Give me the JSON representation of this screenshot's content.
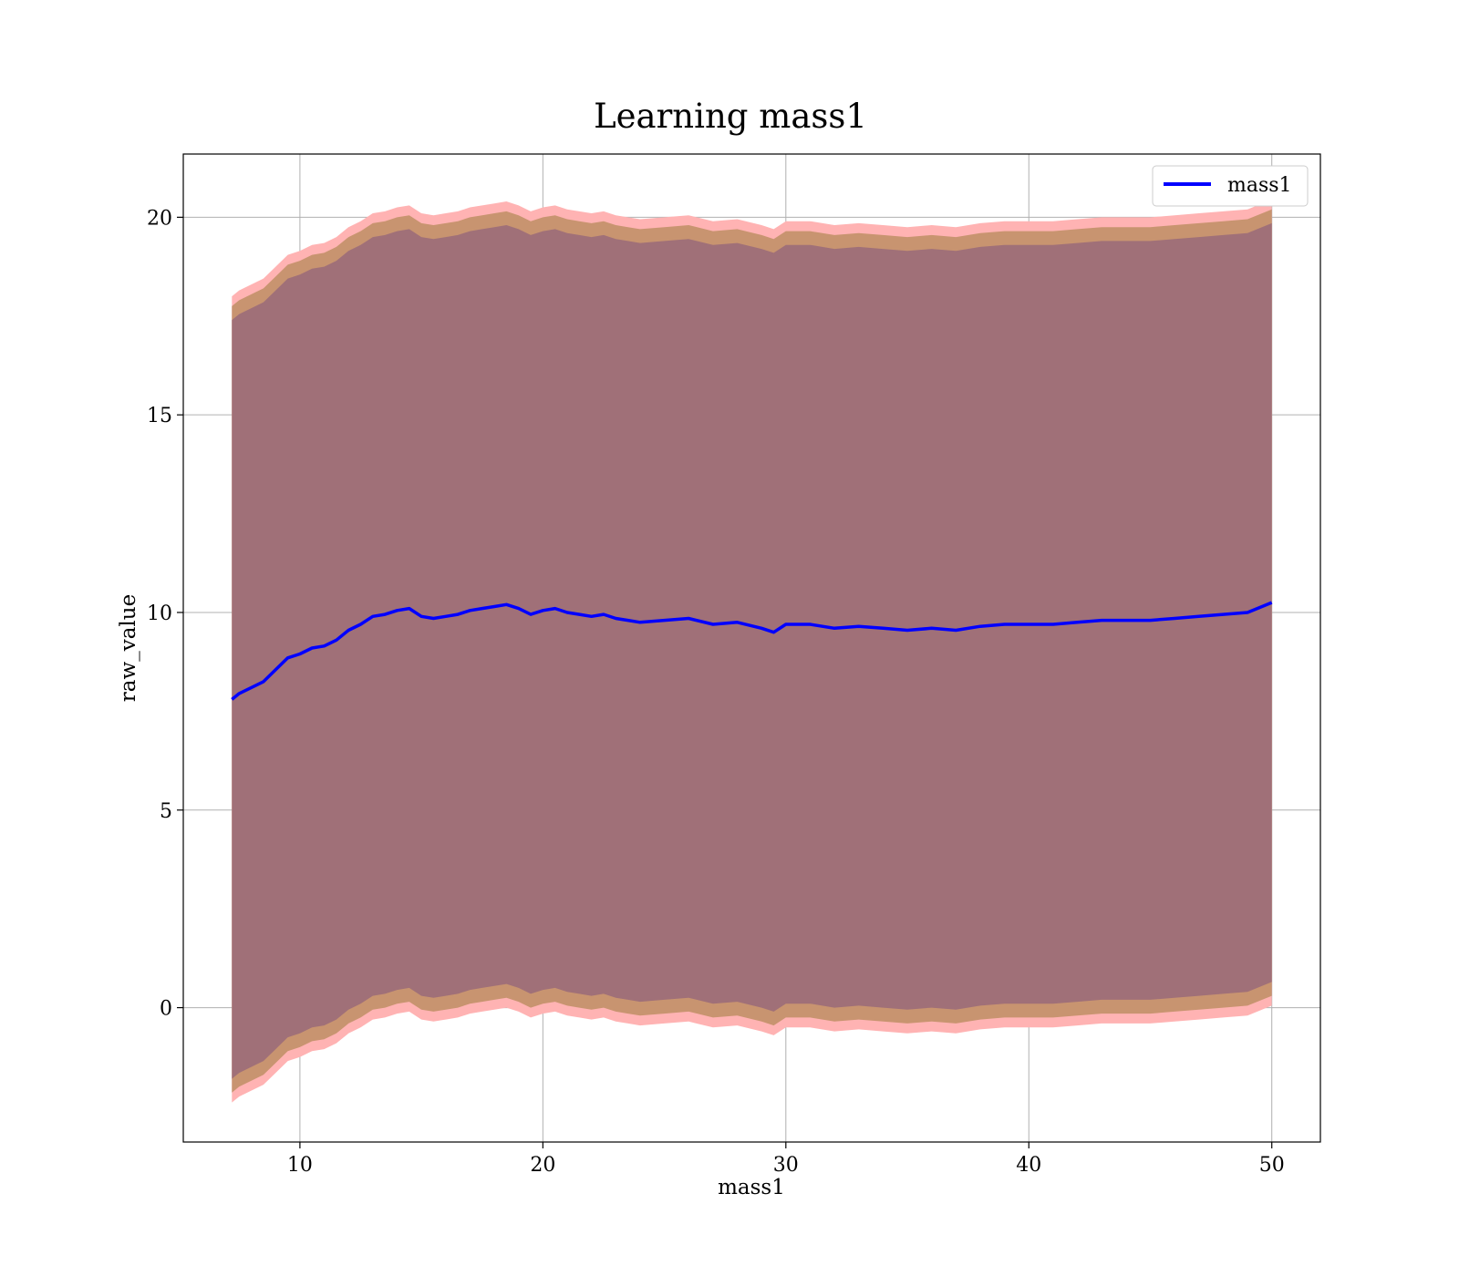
{
  "chart_data": {
    "type": "area",
    "title": "Learning mass1",
    "xlabel": "mass1",
    "ylabel": "raw_value",
    "xlim": [
      5.2,
      52
    ],
    "ylim": [
      -3.4,
      21.6
    ],
    "xticks": [
      10,
      20,
      30,
      40,
      50
    ],
    "yticks": [
      0,
      5,
      10,
      15,
      20
    ],
    "grid": true,
    "legend": {
      "position": "top-right",
      "entries": [
        "mass1"
      ]
    },
    "colors": {
      "line": "#0000ff",
      "band_outer": "#ffb3b3",
      "band_mid": "#c89470",
      "band_inner": "#a07078",
      "grid": "#b0b0b0",
      "axes": "#000000"
    },
    "band_offsets": {
      "outer": [
        10.2,
        -10.2
      ],
      "mid": [
        9.95,
        -9.95
      ],
      "inner": [
        9.6,
        -9.6
      ]
    },
    "series": [
      {
        "name": "mass1",
        "x": [
          7.2,
          7.5,
          8.0,
          8.5,
          9.0,
          9.5,
          10.0,
          10.5,
          11.0,
          11.5,
          12.0,
          12.5,
          13.0,
          13.5,
          14.0,
          14.5,
          15.0,
          15.5,
          16.0,
          16.5,
          17.0,
          17.5,
          18.0,
          18.5,
          19.0,
          19.5,
          20.0,
          20.5,
          21.0,
          21.5,
          22.0,
          22.5,
          23.0,
          23.5,
          24.0,
          25.0,
          26.0,
          27.0,
          28.0,
          29.0,
          29.5,
          30.0,
          31.0,
          32.0,
          33.0,
          34.0,
          35.0,
          36.0,
          37.0,
          38.0,
          39.0,
          40.0,
          41.0,
          42.0,
          43.0,
          44.0,
          45.0,
          46.0,
          47.0,
          48.0,
          49.0,
          50.0
        ],
        "y": [
          7.8,
          7.95,
          8.1,
          8.25,
          8.55,
          8.85,
          8.95,
          9.1,
          9.15,
          9.3,
          9.55,
          9.7,
          9.9,
          9.95,
          10.05,
          10.1,
          9.9,
          9.85,
          9.9,
          9.95,
          10.05,
          10.1,
          10.15,
          10.2,
          10.1,
          9.95,
          10.05,
          10.1,
          10.0,
          9.95,
          9.9,
          9.95,
          9.85,
          9.8,
          9.75,
          9.8,
          9.85,
          9.7,
          9.75,
          9.6,
          9.5,
          9.7,
          9.7,
          9.6,
          9.65,
          9.6,
          9.55,
          9.6,
          9.55,
          9.65,
          9.7,
          9.7,
          9.7,
          9.75,
          9.8,
          9.8,
          9.8,
          9.85,
          9.9,
          9.95,
          10.0,
          10.25
        ]
      }
    ]
  }
}
